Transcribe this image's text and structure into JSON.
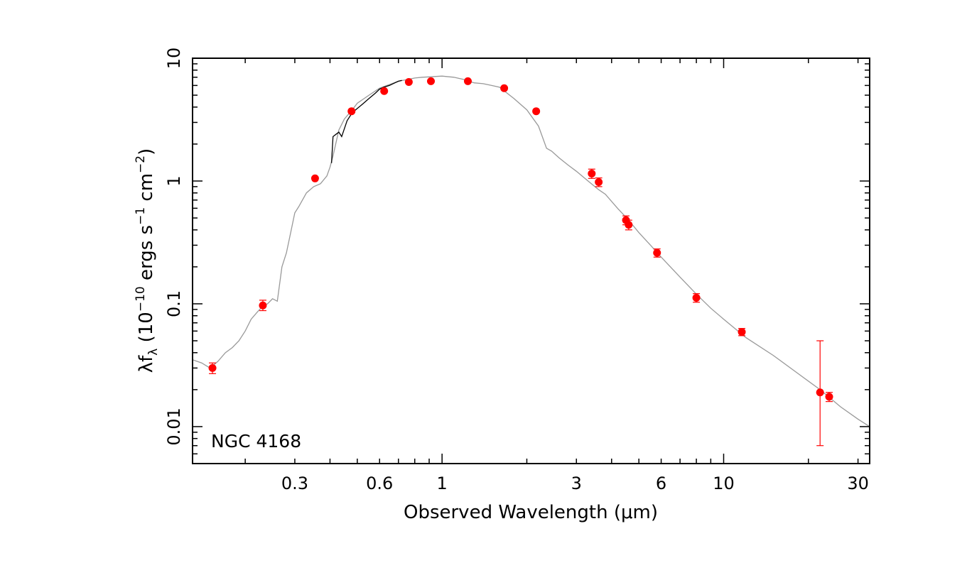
{
  "chart_data": {
    "type": "scatter",
    "title": "",
    "xlabel": "Observed Wavelength (μm)",
    "ylabel": "λf_λ (10^−10 ergs s^−1 cm^−2)",
    "ylabel_parts": {
      "lambda": "λ",
      "f": "f",
      "sub": "λ",
      "open": " (10",
      "exp1": "−10",
      "mid": " ergs s",
      "exp2": "−1",
      "mid2": " cm",
      "exp3": "−2",
      "close": ")"
    },
    "xscale": "log",
    "yscale": "log",
    "xlim": [
      0.13,
      33
    ],
    "ylim": [
      0.005,
      10
    ],
    "x_ticks": [
      {
        "value": 0.3,
        "label": "0.3"
      },
      {
        "value": 0.6,
        "label": "0.6"
      },
      {
        "value": 1,
        "label": "1"
      },
      {
        "value": 3,
        "label": "3"
      },
      {
        "value": 6,
        "label": "6"
      },
      {
        "value": 10,
        "label": "10"
      },
      {
        "value": 30,
        "label": "30"
      }
    ],
    "y_ticks": [
      {
        "value": 0.01,
        "label": "0.01"
      },
      {
        "value": 0.1,
        "label": "0.1"
      },
      {
        "value": 1,
        "label": "1"
      },
      {
        "value": 10,
        "label": "10"
      }
    ],
    "annotation": "NGC 4168",
    "grid": false,
    "colors": {
      "points": "#ff0000",
      "model": "#999999",
      "spectrum": "#000000",
      "axes": "#000000"
    },
    "series": [
      {
        "kind": "model",
        "x": [
          0.13,
          0.14,
          0.15,
          0.16,
          0.17,
          0.18,
          0.19,
          0.2,
          0.21,
          0.22,
          0.23,
          0.24,
          0.25,
          0.26,
          0.27,
          0.28,
          0.29,
          0.3,
          0.31,
          0.33,
          0.35,
          0.37,
          0.39,
          0.4,
          0.41,
          0.43,
          0.45,
          0.48,
          0.5,
          0.55,
          0.6,
          0.65,
          0.7,
          0.75,
          0.8,
          0.85,
          0.9,
          0.95,
          1.0,
          1.1,
          1.2,
          1.3,
          1.4,
          1.5,
          1.6,
          1.8,
          2.0,
          2.2,
          2.35,
          2.45,
          2.6,
          2.8,
          3.0,
          3.3,
          3.6,
          3.8,
          4.2,
          4.6,
          5.0,
          5.5,
          6.0,
          7.0,
          8.0,
          9.0,
          10,
          12,
          15,
          18,
          22,
          26,
          30,
          33
        ],
        "y": [
          0.035,
          0.033,
          0.03,
          0.034,
          0.04,
          0.044,
          0.05,
          0.06,
          0.075,
          0.085,
          0.095,
          0.1,
          0.11,
          0.105,
          0.2,
          0.26,
          0.38,
          0.55,
          0.62,
          0.8,
          0.9,
          0.95,
          1.1,
          1.3,
          1.6,
          2.6,
          3.2,
          3.8,
          4.3,
          5.0,
          5.7,
          6.1,
          6.5,
          6.7,
          6.9,
          7.0,
          7.05,
          7.1,
          7.15,
          7.0,
          6.7,
          6.3,
          6.2,
          6.0,
          5.8,
          4.7,
          3.8,
          2.8,
          1.85,
          1.75,
          1.55,
          1.35,
          1.2,
          1.0,
          0.85,
          0.78,
          0.6,
          0.48,
          0.38,
          0.3,
          0.24,
          0.165,
          0.12,
          0.092,
          0.075,
          0.053,
          0.038,
          0.028,
          0.02,
          0.0145,
          0.0115,
          0.01
        ]
      },
      {
        "kind": "spectrum",
        "x": [
          0.405,
          0.41,
          0.42,
          0.43,
          0.44,
          0.46,
          0.48,
          0.5,
          0.52,
          0.55,
          0.58,
          0.6,
          0.62,
          0.65,
          0.68,
          0.7,
          0.72
        ],
        "y": [
          1.4,
          2.3,
          2.4,
          2.5,
          2.3,
          3.1,
          3.6,
          3.9,
          4.2,
          4.7,
          5.2,
          5.6,
          5.8,
          6.0,
          6.3,
          6.5,
          6.6
        ]
      },
      {
        "kind": "photometry",
        "x": [
          0.153,
          0.231,
          0.354,
          0.477,
          0.623,
          0.762,
          0.913,
          1.235,
          1.662,
          2.159,
          3.4,
          3.6,
          4.5,
          4.6,
          5.8,
          8.0,
          11.6,
          22.0,
          23.7
        ],
        "y": [
          0.03,
          0.097,
          1.05,
          3.7,
          5.4,
          6.4,
          6.5,
          6.5,
          5.7,
          3.7,
          1.15,
          0.98,
          0.48,
          0.44,
          0.26,
          0.112,
          0.059,
          0.019,
          0.0175
        ],
        "yerr_low": [
          0.027,
          0.088,
          null,
          null,
          null,
          null,
          null,
          null,
          null,
          null,
          1.05,
          0.9,
          0.44,
          0.4,
          0.24,
          0.103,
          0.055,
          0.007,
          0.016
        ],
        "yerr_high": [
          0.033,
          0.107,
          null,
          null,
          null,
          null,
          null,
          null,
          null,
          null,
          1.25,
          1.06,
          0.52,
          0.48,
          0.28,
          0.121,
          0.063,
          0.05,
          0.019
        ]
      }
    ]
  }
}
